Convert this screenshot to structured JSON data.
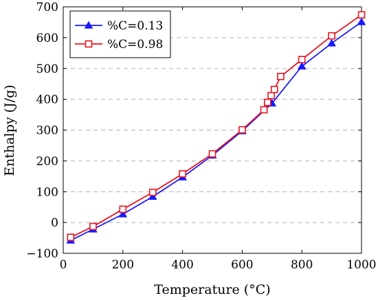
{
  "chart_data": {
    "type": "line",
    "title": "",
    "xlabel": "Temperature (°C)",
    "ylabel": "Enthalpy (J/g)",
    "xlim": [
      0,
      1000
    ],
    "ylim": [
      -100,
      700
    ],
    "xticks": [
      0,
      200,
      400,
      600,
      800,
      1000
    ],
    "yticks": [
      -100,
      0,
      100,
      200,
      300,
      400,
      500,
      600,
      700
    ],
    "grid": "horizontal-dashed",
    "legend_position": "top-left",
    "series": [
      {
        "name": "%C=0.13",
        "color": "#1a1aff",
        "marker": "triangle",
        "x": [
          25,
          100,
          200,
          300,
          400,
          500,
          600,
          700,
          800,
          900,
          1000
        ],
        "y": [
          -58,
          -22,
          27,
          84,
          147,
          218,
          297,
          387,
          507,
          582,
          651
        ]
      },
      {
        "name": "%C=0.98",
        "color": "#e8141e",
        "marker": "square",
        "x": [
          25,
          100,
          200,
          300,
          400,
          500,
          600,
          673,
          685,
          697,
          708,
          729,
          800,
          900,
          1000
        ],
        "y": [
          -48,
          -13,
          43,
          98,
          158,
          223,
          301,
          366,
          390,
          412,
          432,
          474,
          529,
          606,
          674
        ]
      }
    ]
  }
}
